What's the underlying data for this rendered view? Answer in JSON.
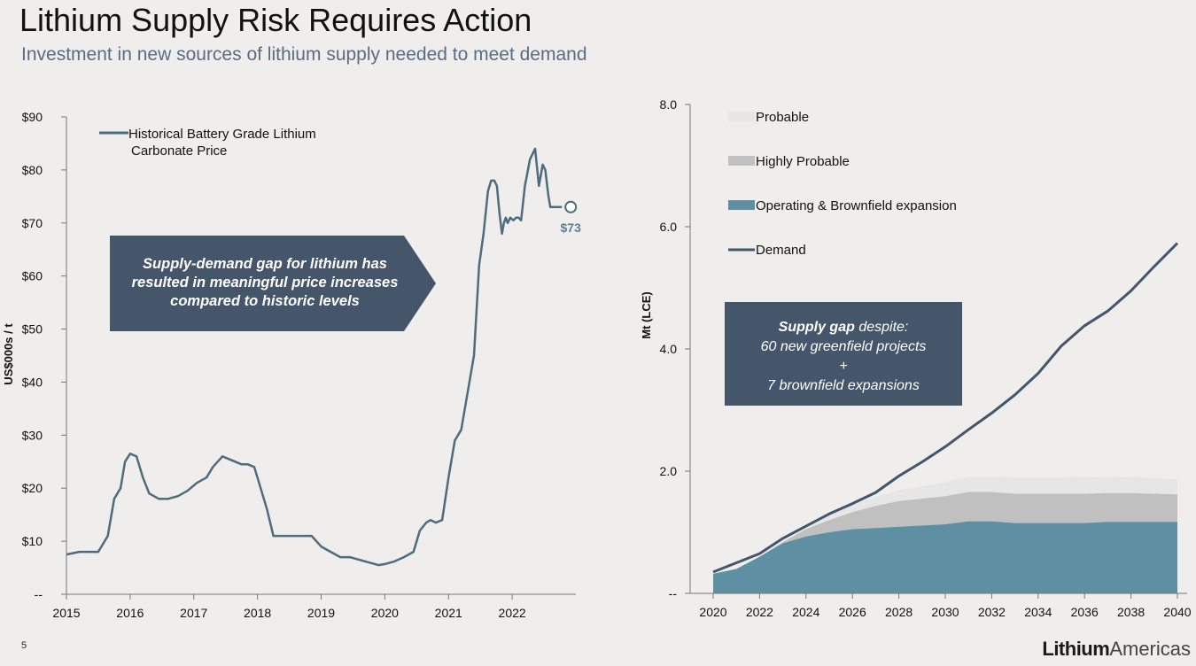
{
  "header": {
    "title": "Lithium Supply Risk Requires Action",
    "subtitle": "Investment in new sources of lithium supply needed to meet demand"
  },
  "footer": {
    "page_number": "5",
    "logo_bold": "Lithium",
    "logo_light": "Americas"
  },
  "chart_data": [
    {
      "type": "line",
      "ylabel": "US$000s / t",
      "xlim": [
        2015,
        2023
      ],
      "ylim": [
        0,
        90
      ],
      "x_ticks": [
        "2015",
        "2016",
        "2017",
        "2018",
        "2019",
        "2020",
        "2021",
        "2022"
      ],
      "y_ticks": [
        "--",
        "$10",
        "$20",
        "$30",
        "$40",
        "$50",
        "$60",
        "$70",
        "$80",
        "$90"
      ],
      "legend": {
        "position": "top-left",
        "label_line1": "Historical Battery Grade Lithium",
        "label_line2": "Carbonate Price"
      },
      "line_color": "#4f6b7c",
      "series": [
        {
          "name": "Historical Battery Grade Lithium Carbonate Price",
          "x": [
            2015.0,
            2015.2,
            2015.5,
            2015.65,
            2015.75,
            2015.85,
            2015.92,
            2016.0,
            2016.1,
            2016.2,
            2016.3,
            2016.45,
            2016.6,
            2016.75,
            2016.9,
            2017.05,
            2017.2,
            2017.3,
            2017.45,
            2017.55,
            2017.65,
            2017.75,
            2017.85,
            2017.95,
            2018.05,
            2018.15,
            2018.25,
            2018.35,
            2018.45,
            2018.55,
            2018.7,
            2018.85,
            2019.0,
            2019.15,
            2019.3,
            2019.45,
            2019.6,
            2019.75,
            2019.9,
            2020.0,
            2020.15,
            2020.3,
            2020.45,
            2020.55,
            2020.65,
            2020.72,
            2020.8,
            2020.9,
            2021.0,
            2021.1,
            2021.2,
            2021.3,
            2021.4,
            2021.48,
            2021.55,
            2021.62,
            2021.67,
            2021.72,
            2021.76,
            2021.8,
            2021.84,
            2021.87,
            2021.9,
            2021.93,
            2021.97,
            2022.02,
            2022.06,
            2022.1,
            2022.14,
            2022.2,
            2022.28,
            2022.36,
            2022.42,
            2022.48,
            2022.52,
            2022.57,
            2022.6,
            2022.63,
            2022.65,
            2022.68,
            2022.72,
            2022.75,
            2022.78
          ],
          "values": [
            7.5,
            8.0,
            8.0,
            11,
            18,
            20,
            25,
            26.5,
            26,
            22,
            19,
            18,
            18,
            18.5,
            19.5,
            21,
            22,
            24,
            26,
            25.5,
            25,
            24.5,
            24.5,
            24,
            20,
            16,
            11,
            11,
            11,
            11,
            11,
            11,
            9,
            8,
            7,
            7,
            6.5,
            6,
            5.5,
            5.7,
            6.2,
            7,
            8,
            12,
            13.5,
            14,
            13.5,
            14,
            22,
            29,
            31,
            38,
            45,
            62,
            68,
            76,
            78,
            78,
            77,
            72,
            68,
            70,
            71,
            70,
            71,
            70.5,
            71,
            71,
            70.5,
            77,
            82,
            84,
            77,
            81,
            80,
            75,
            73,
            73,
            73,
            73,
            73,
            73,
            73
          ],
          "end_label": "$73",
          "end_value": 73
        }
      ]
    },
    {
      "type": "area",
      "ylabel": "Mt (LCE)",
      "xlim": [
        2020,
        2040
      ],
      "ylim": [
        0,
        8
      ],
      "x_ticks": [
        "2020",
        "2022",
        "2024",
        "2026",
        "2028",
        "2030",
        "2032",
        "2034",
        "2036",
        "2038",
        "2040"
      ],
      "y_ticks": [
        "--",
        "2.0",
        "4.0",
        "6.0",
        "8.0"
      ],
      "legend": {
        "position": "top-left"
      },
      "x": [
        2020,
        2021,
        2022,
        2023,
        2024,
        2025,
        2026,
        2027,
        2028,
        2029,
        2030,
        2031,
        2032,
        2033,
        2034,
        2035,
        2036,
        2037,
        2038,
        2039,
        2040
      ],
      "series": [
        {
          "name": "Probable",
          "color": "#e6e6e6",
          "kind": "stacked_area",
          "values": [
            0,
            0,
            0,
            0,
            0.02,
            0.06,
            0.12,
            0.15,
            0.18,
            0.2,
            0.23,
            0.25,
            0.25,
            0.27,
            0.27,
            0.27,
            0.28,
            0.26,
            0.27,
            0.26,
            0.25
          ]
        },
        {
          "name": "Highly Probable",
          "color": "#c0c0c0",
          "kind": "stacked_area",
          "values": [
            0,
            0,
            0,
            0.02,
            0.12,
            0.2,
            0.28,
            0.36,
            0.42,
            0.44,
            0.46,
            0.48,
            0.48,
            0.48,
            0.48,
            0.48,
            0.48,
            0.47,
            0.47,
            0.46,
            0.45
          ]
        },
        {
          "name": "Operating & Brownfield expansion",
          "color": "#5e8fa3",
          "kind": "stacked_area",
          "values": [
            0.32,
            0.4,
            0.6,
            0.82,
            0.93,
            1.0,
            1.05,
            1.07,
            1.09,
            1.11,
            1.13,
            1.18,
            1.18,
            1.15,
            1.15,
            1.15,
            1.15,
            1.17,
            1.17,
            1.17,
            1.17
          ]
        },
        {
          "name": "Demand",
          "color": "#45556a",
          "kind": "line",
          "values": [
            0.35,
            0.5,
            0.65,
            0.9,
            1.1,
            1.3,
            1.47,
            1.65,
            1.92,
            2.15,
            2.4,
            2.68,
            2.95,
            3.25,
            3.6,
            4.05,
            4.38,
            4.62,
            4.95,
            5.35,
            5.73
          ]
        }
      ]
    }
  ],
  "callouts": {
    "price_box_line1": "Supply-demand gap for lithium has",
    "price_box_line2": "resulted in meaningful price increases",
    "price_box_line3": "compared to historic levels",
    "supply_gap_bold": "Supply gap",
    "supply_gap_rest": " despite:",
    "supply_gap_line2": "60 new greenfield projects",
    "supply_gap_line3": "+",
    "supply_gap_line4": "7 brownfield expansions"
  }
}
